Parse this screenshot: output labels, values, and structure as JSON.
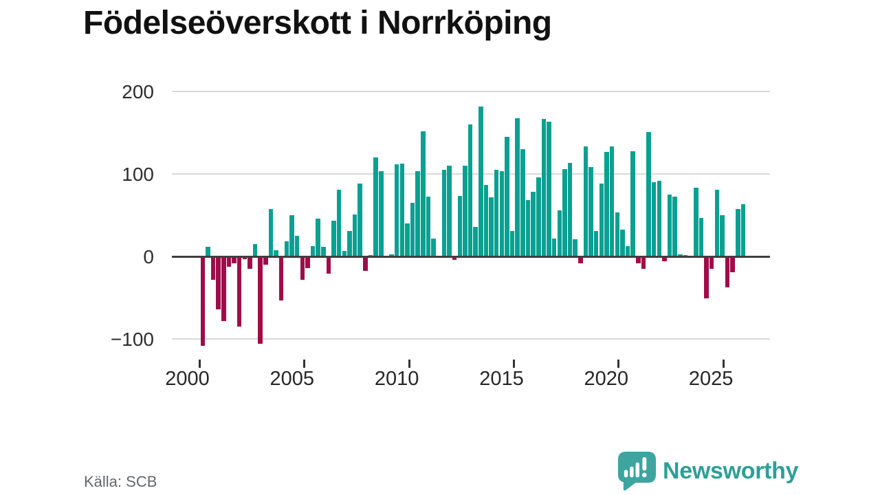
{
  "title": "Födelseöverskott i Norrköping",
  "source": "Källa: SCB",
  "branding": {
    "wordmark": "Newsworthy",
    "logo_icon": "speech-bubble-bar-chart-icon",
    "brand_color": "#2d9f98",
    "logo_bubble_color": "#3da4a0"
  },
  "chart_data": {
    "type": "bar",
    "title": "Födelseöverskott i Norrköping",
    "frequency": "quarterly",
    "start_period": "2000Q1",
    "end_period": "2025Q4",
    "values": [
      -108,
      12,
      -28,
      -64,
      -78,
      -12,
      -8,
      -85,
      -3,
      -15,
      15,
      -106,
      -10,
      58,
      8,
      -53,
      19,
      50,
      25,
      -28,
      -14,
      13,
      46,
      12,
      -21,
      44,
      81,
      7,
      31,
      51,
      89,
      -17,
      2,
      120,
      104,
      0,
      3,
      112,
      113,
      40,
      65,
      104,
      152,
      73,
      22,
      0,
      105,
      110,
      -4,
      74,
      110,
      160,
      36,
      182,
      87,
      72,
      105,
      104,
      145,
      31,
      168,
      130,
      69,
      79,
      96,
      167,
      164,
      22,
      56,
      106,
      114,
      21,
      -8,
      134,
      109,
      31,
      89,
      127,
      134,
      54,
      33,
      13,
      128,
      -8,
      -15,
      151,
      90,
      92,
      -6,
      75,
      73,
      3,
      2,
      0,
      84,
      47,
      -51,
      -15,
      81,
      50,
      -37,
      -19,
      58,
      64
    ],
    "y_ticks": [
      200,
      100,
      0,
      -100
    ],
    "x_tick_years": [
      "2000",
      "2005",
      "2010",
      "2015",
      "2020",
      "2025"
    ],
    "ylim": [
      -120,
      210
    ],
    "grid": "horizontal-only",
    "legend": "none",
    "colors": {
      "positive": "#0aa092",
      "negative": "#a00c49"
    },
    "axis_colors": {
      "gridline": "#d9d9d9",
      "zero_line": "#3f3f3f",
      "tick": "#333333",
      "label": "#2d2d2d"
    }
  }
}
